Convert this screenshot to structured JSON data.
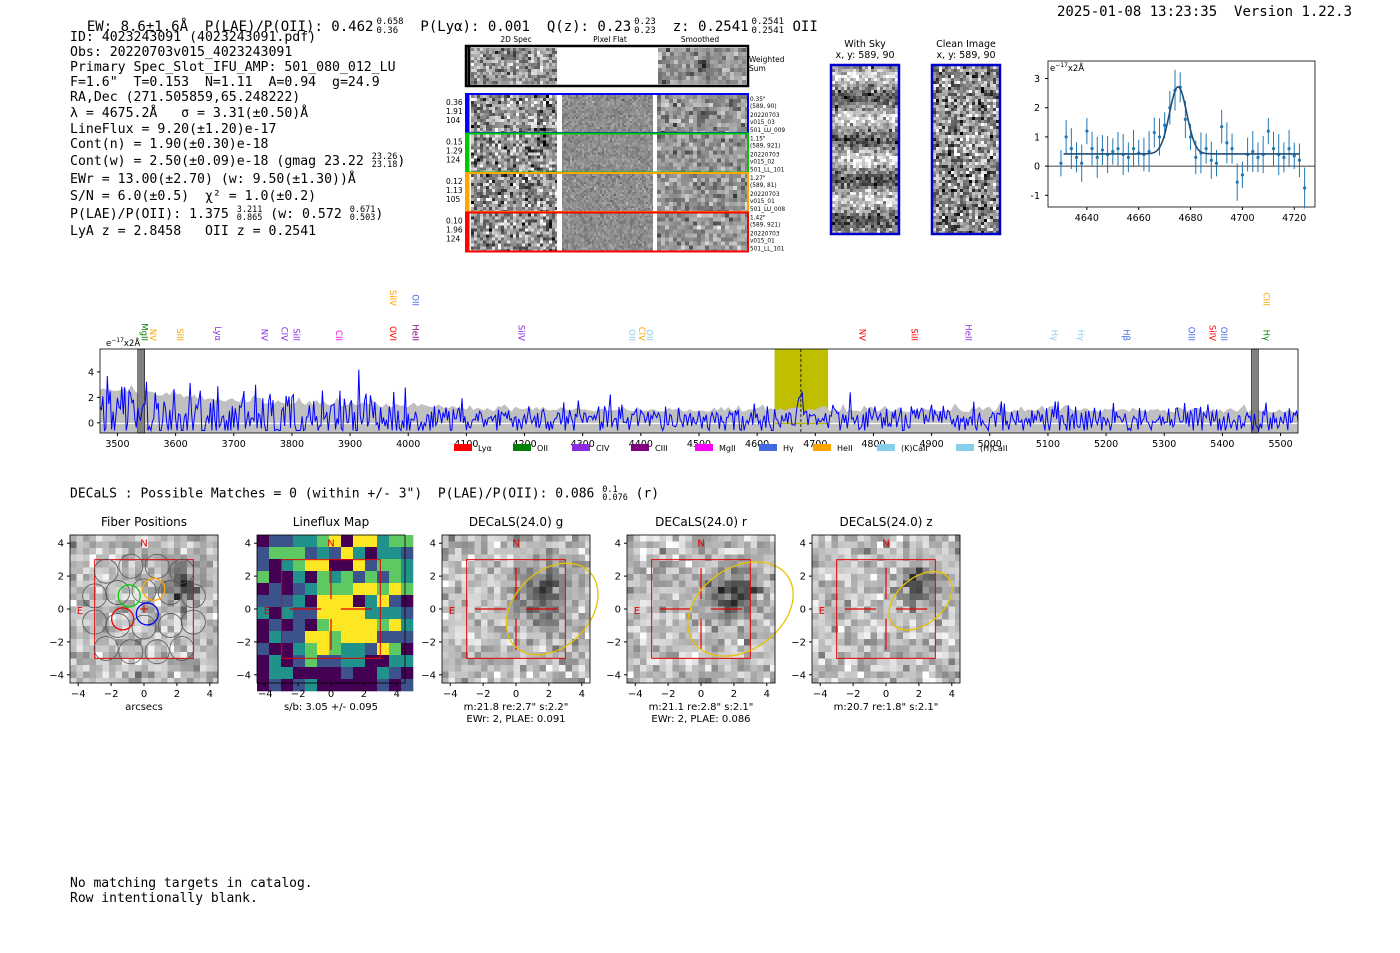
{
  "header": {
    "ew": "EW: 8.6±1.6Å",
    "plae_prefix": "P(LAE)/P(OII): 0.462",
    "plae_sup": "0.658",
    "plae_sub": "0.36",
    "plya": "P(Lyα): 0.001",
    "qz_prefix": "Q(z): 0.23",
    "qz_sup": "0.23",
    "qz_sub": "0.23",
    "z_prefix": "z: 0.2541",
    "z_sup": "0.2541",
    "z_sub": "0.2541",
    "z_line": "OII",
    "timestamp": "2025-01-08 13:23:35",
    "version": "Version 1.22.3"
  },
  "info": {
    "id": "ID: 4023243091 (4023243091.pdf)",
    "obs": "Obs: 20220703v015_4023243091",
    "primary": "Primary Spec_Slot_IFU_AMP: 501_080_012_LU",
    "fibers": "F=1.6\"  T=0.153  N=1.11  A=0.94  g=24.9",
    "radec": "RA,Dec (271.505859,65.248222)",
    "lambda": "λ = 4675.2Å   σ = 3.31(±0.50)Å",
    "lineflux": "LineFlux = 9.20(±1.20)e-17",
    "contn": "Cont(n) = 1.90(±0.30)e-18",
    "contw_prefix": "Cont(w) = 2.50(±0.09)e-18 (gmag 23.22",
    "contw_sup": "23.26",
    "contw_sub": "23.18",
    "contw_suffix": ")",
    "ewr": "EWr = 13.00(±2.70) (w: 9.50(±1.30))Å",
    "sn": "S/N = 6.0(±0.5)  χ² = 1.0(±0.2)",
    "plae_prefix": "P(LAE)/P(OII): 1.375",
    "plae_sup": "3.211",
    "plae_sub": "0.865",
    "plae_mid": "(w: 0.572",
    "plae_sup2": "0.671",
    "plae_sub2": "0.503",
    "plae_end": ")",
    "lya": "LyA z = 2.8458   OII z = 0.2541"
  },
  "cutouts": {
    "col_2d": "2D Spec",
    "col_flat": "Pixel Flat",
    "col_smooth": "Smoothed",
    "weighted1": "Weighted",
    "weighted2": "Sum",
    "rows": [
      {
        "w1": "0.36",
        "w2": "1.91",
        "w3": "104",
        "d1": "0.35\"",
        "d2": "(589, 90)",
        "d3": "20220703",
        "d4": "v015_03",
        "d5": "501_LU_009"
      },
      {
        "w1": "0.15",
        "w2": "1.29",
        "w3": "124",
        "d1": "1.15\"",
        "d2": "(589, 921)",
        "d3": "20220703",
        "d4": "v015_02",
        "d5": "501_LL_101"
      },
      {
        "w1": "0.12",
        "w2": "1.13",
        "w3": "105",
        "d1": "1.27\"",
        "d2": "(589, 81)",
        "d3": "20220703",
        "d4": "v015_01",
        "d5": "501_LU_008"
      },
      {
        "w1": "0.10",
        "w2": "1.96",
        "w3": "124",
        "d1": "1.42\"",
        "d2": "(589, 921)",
        "d3": "20220703",
        "d4": "v015_01",
        "d5": "501_LL_101"
      }
    ]
  },
  "sky": {
    "with_sky": "With Sky",
    "with_sky_xy": "x, y: 589, 90",
    "clean": "Clean Image",
    "clean_xy": "x, y: 589, 90"
  },
  "colors": {
    "blue": "#0000ff",
    "line_blue": "#1f77b4",
    "yellow_band": "#bfbf00",
    "red": "#ff0000",
    "gray_fill": "#c0c0c0"
  },
  "matches": {
    "prefix": "DECaLS : Possible Matches = 0 (within +/- 3\")  P(LAE)/P(OII): 0.086",
    "sup": "0.1",
    "sub": "0.076",
    "suffix": "(r)"
  },
  "bottom": {
    "line1": "No matching targets in catalog.",
    "line2": "Row intentionally blank."
  },
  "chart_data": [
    {
      "type": "line",
      "title": "",
      "ylabel": "e^-17 x2Å",
      "xlim": [
        4625,
        4728
      ],
      "ylim": [
        -1.4,
        3.6
      ],
      "xticks": [
        4640,
        4660,
        4680,
        4700,
        4720
      ],
      "yticks": [
        -1,
        0,
        1,
        2,
        3
      ],
      "fit_center": 4675.2,
      "fit_sigma": 3.31,
      "fit_amplitude": 2.3,
      "fit_continuum": 0.42,
      "points": [
        [
          4630,
          0.1
        ],
        [
          4632,
          1.0
        ],
        [
          4634,
          0.6
        ],
        [
          4636,
          0.3
        ],
        [
          4638,
          0.1
        ],
        [
          4640,
          1.2
        ],
        [
          4642,
          0.6
        ],
        [
          4644,
          0.3
        ],
        [
          4646,
          0.55
        ],
        [
          4648,
          0.4
        ],
        [
          4650,
          0.5
        ],
        [
          4652,
          0.6
        ],
        [
          4654,
          0.4
        ],
        [
          4656,
          0.3
        ],
        [
          4658,
          0.6
        ],
        [
          4660,
          0.45
        ],
        [
          4662,
          0.4
        ],
        [
          4664,
          0.5
        ],
        [
          4666,
          1.15
        ],
        [
          4668,
          1.0
        ],
        [
          4670,
          1.4
        ],
        [
          4672,
          2.0
        ],
        [
          4674,
          2.6
        ],
        [
          4676,
          2.7
        ],
        [
          4678,
          1.6
        ],
        [
          4680,
          1.0
        ],
        [
          4682,
          0.3
        ],
        [
          4684,
          0.45
        ],
        [
          4686,
          0.6
        ],
        [
          4688,
          0.2
        ],
        [
          4690,
          0.1
        ],
        [
          4692,
          1.35
        ],
        [
          4694,
          0.8
        ],
        [
          4696,
          0.6
        ],
        [
          4698,
          -0.55
        ],
        [
          4700,
          -0.3
        ],
        [
          4702,
          0.4
        ],
        [
          4704,
          0.5
        ],
        [
          4706,
          0.3
        ],
        [
          4708,
          0.4
        ],
        [
          4710,
          1.2
        ],
        [
          4712,
          0.6
        ],
        [
          4714,
          0.4
        ],
        [
          4716,
          0.3
        ],
        [
          4718,
          0.6
        ],
        [
          4720,
          0.35
        ],
        [
          4722,
          0.2
        ],
        [
          4724,
          -0.75
        ]
      ]
    },
    {
      "type": "line",
      "title": "",
      "ylabel": "e^-17 x2Å",
      "xlim": [
        3470,
        5530
      ],
      "ylim": [
        -0.8,
        5.8
      ],
      "xticks": [
        3500,
        3600,
        3700,
        3800,
        3900,
        4000,
        4100,
        4200,
        4300,
        4400,
        4500,
        4600,
        4700,
        4800,
        4900,
        5000,
        5100,
        5200,
        5300,
        5400,
        5500
      ],
      "yticks": [
        0,
        2,
        4
      ],
      "highlight_band": [
        4630,
        4722
      ],
      "marker_line": 4675.2,
      "gray_bars": [
        3540,
        5455
      ],
      "legend": [
        "Lyα",
        "OII",
        "CIV",
        "CIII",
        "MgII",
        "Hγ",
        "HeII",
        "(K)CaII",
        "(H)CaII"
      ],
      "legend_colors": [
        "#ff0000",
        "#008000",
        "#8a2be2",
        "#800080",
        "#ff00ff",
        "#4169e1",
        "#ffa500",
        "#87ceeb",
        "#87ceeb"
      ],
      "line_labels": [
        {
          "label": "MgII",
          "x": 3541,
          "color": "#008000",
          "row": 2
        },
        {
          "label": "NV",
          "x": 3556,
          "color": "#ffa500",
          "row": 2
        },
        {
          "label": "SiII",
          "x": 3602,
          "color": "#ffa500",
          "row": 2
        },
        {
          "label": "Lyα",
          "x": 3668,
          "color": "#8a2be2",
          "row": 2
        },
        {
          "label": "NV",
          "x": 3748,
          "color": "#8a2be2",
          "row": 2
        },
        {
          "label": "CIV",
          "x": 3782,
          "color": "#8a2be2",
          "row": 2
        },
        {
          "label": "SiII",
          "x": 3803,
          "color": "#8a2be2",
          "row": 2
        },
        {
          "label": "CII",
          "x": 3876,
          "color": "#ff00ff",
          "row": 2
        },
        {
          "label": "OVI",
          "x": 3969,
          "color": "#ff0000",
          "row": 2
        },
        {
          "label": "SiIV",
          "x": 3969,
          "color": "#ffa500",
          "row": 1
        },
        {
          "label": "HeII",
          "x": 4007,
          "color": "#800080",
          "row": 2
        },
        {
          "label": "OII",
          "x": 4007,
          "color": "#4169e1",
          "row": 1
        },
        {
          "label": "SiIV",
          "x": 4190,
          "color": "#8a2be2",
          "row": 2
        },
        {
          "label": "OII",
          "x": 4380,
          "color": "#87ceeb",
          "row": 2
        },
        {
          "label": "CIV",
          "x": 4397,
          "color": "#ffa500",
          "row": 2
        },
        {
          "label": "OII",
          "x": 4410,
          "color": "#87ceeb",
          "row": 2
        },
        {
          "label": "NV",
          "x": 4776,
          "color": "#ff0000",
          "row": 2
        },
        {
          "label": "SiII",
          "x": 4865,
          "color": "#ff0000",
          "row": 2
        },
        {
          "label": "HeII",
          "x": 4958,
          "color": "#8a2be2",
          "row": 2
        },
        {
          "label": "Hγ",
          "x": 5106,
          "color": "#87ceeb",
          "row": 2
        },
        {
          "label": "Hγ",
          "x": 5152,
          "color": "#87ceeb",
          "row": 2
        },
        {
          "label": "Hβ",
          "x": 5230,
          "color": "#4169e1",
          "row": 2
        },
        {
          "label": "OIII",
          "x": 5342,
          "color": "#4169e1",
          "row": 2
        },
        {
          "label": "SiIV",
          "x": 5378,
          "color": "#ff0000",
          "row": 2
        },
        {
          "label": "OIII",
          "x": 5398,
          "color": "#4169e1",
          "row": 2
        },
        {
          "label": "Hγ",
          "x": 5471,
          "color": "#008000",
          "row": 2
        },
        {
          "label": "CIII",
          "x": 5471,
          "color": "#ffa500",
          "row": 1
        }
      ]
    },
    {
      "type": "heatmap",
      "panels": [
        {
          "title": "Fiber Positions",
          "caption1": "arcsecs",
          "caption2": ""
        },
        {
          "title": "Lineflux Map",
          "caption1": "s/b: 3.05 +/- 0.095",
          "caption2": ""
        },
        {
          "title": "DECaLS(24.0) g",
          "caption1": "m:21.8  re:2.7\"  s:2.2\"",
          "caption2": "EWr: 2, PLAE: 0.091"
        },
        {
          "title": "DECaLS(24.0) r",
          "caption1": "m:21.1  re:2.8\"  s:2.1\"",
          "caption2": "EWr: 2, PLAE: 0.086"
        },
        {
          "title": "DECaLS(24.0) z",
          "caption1": "m:20.7  re:1.8\"  s:2.1\"",
          "caption2": ""
        }
      ],
      "north_label": "N",
      "east_label": "E",
      "xticks": [
        -4,
        -2,
        0,
        2,
        4
      ],
      "yticks": [
        4,
        2,
        0,
        -2,
        -4
      ],
      "xlim": [
        -4.5,
        4.5
      ],
      "ylim": [
        -4.5,
        4.5
      ]
    }
  ]
}
